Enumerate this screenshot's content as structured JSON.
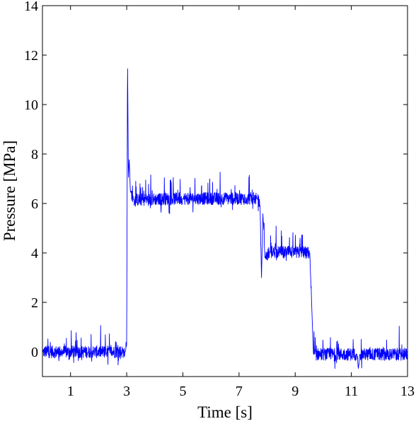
{
  "chart_data": {
    "type": "line",
    "xlabel": "Time [s]",
    "ylabel": "Pressure [MPa]",
    "xlim": [
      0,
      13
    ],
    "ylim": [
      -1,
      14
    ],
    "x_ticks": [
      1,
      3,
      5,
      7,
      9,
      11,
      13
    ],
    "y_ticks": [
      0,
      2,
      4,
      6,
      8,
      10,
      12,
      14
    ],
    "grid": false,
    "line_color": "#0000ff",
    "series": [
      {
        "style": "noisy-line",
        "points": [
          [
            0.0,
            0.0
          ],
          [
            2.95,
            0.0
          ],
          [
            3.0,
            0.3
          ],
          [
            3.03,
            12.0
          ],
          [
            3.06,
            7.0
          ],
          [
            3.09,
            7.8
          ],
          [
            3.13,
            6.5
          ],
          [
            3.25,
            6.15
          ],
          [
            5.0,
            6.2
          ],
          [
            7.65,
            6.2
          ],
          [
            7.75,
            5.9
          ],
          [
            7.8,
            3.0
          ],
          [
            7.85,
            5.6
          ],
          [
            7.92,
            3.8
          ],
          [
            8.1,
            4.05
          ],
          [
            9.52,
            4.0
          ],
          [
            9.6,
            1.5
          ],
          [
            9.65,
            -0.1
          ],
          [
            11.2,
            -0.1
          ],
          [
            11.25,
            -0.7
          ],
          [
            11.3,
            -0.1
          ],
          [
            13.0,
            -0.1
          ]
        ]
      }
    ]
  }
}
